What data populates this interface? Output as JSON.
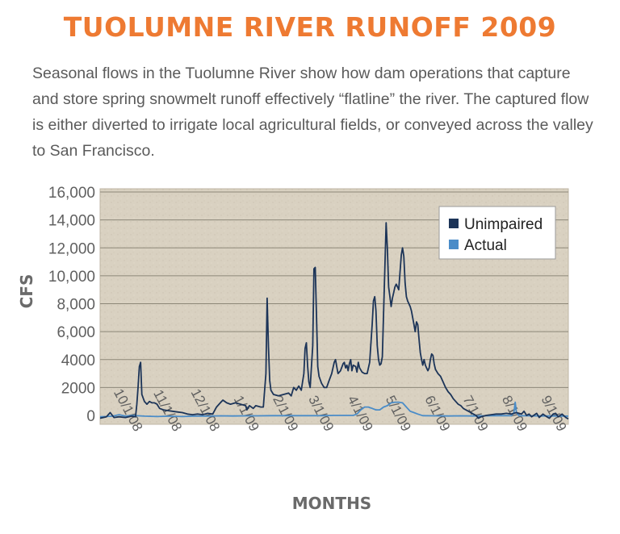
{
  "title": "TUOLUMNE RIVER RUNOFF 2009",
  "description": "Seasonal flows in the Tuolumne River show how dam operations that capture and store spring snowmelt runoff effectively “flatline” the river. The captured flow is either diverted to irrigate local agricultural fields, or conveyed across the valley to San Francisco.",
  "colors": {
    "title": "#ee7a32",
    "unimpaired": "#1c3458",
    "actual": "#4a8cc8",
    "plot_bg": "#d9d1c1",
    "grid": "#8d8778"
  },
  "chart_data": {
    "type": "line",
    "xlabel": "MONTHS",
    "ylabel": "CFS",
    "ylim": [
      0,
      16000
    ],
    "y_ticks": [
      "0",
      "2000",
      "4000",
      "6,000",
      "8,000",
      "10,000",
      "12,000",
      "14,000",
      "16,000"
    ],
    "x_ticks": [
      "10/1/08",
      "11/1/08",
      "12/1/08",
      "1/1/09",
      "2/1/09",
      "3/1/09",
      "4/1/09",
      "5/1/09",
      "6/1/09",
      "7/1/09",
      "8/1/09",
      "9/1/09"
    ],
    "xlim_day": [
      -25,
      345
    ],
    "grid": true,
    "legend_position": "top-right",
    "series": [
      {
        "name": "Unimpaired",
        "points": [
          [
            -25,
            -200
          ],
          [
            -20,
            -100
          ],
          [
            -17,
            200
          ],
          [
            -14,
            -150
          ],
          [
            -10,
            -100
          ],
          [
            -5,
            -150
          ],
          [
            0,
            -50
          ],
          [
            3,
            -100
          ],
          [
            4,
            800
          ],
          [
            5,
            2000
          ],
          [
            6,
            3500
          ],
          [
            7,
            3800
          ],
          [
            8,
            1500
          ],
          [
            10,
            1000
          ],
          [
            12,
            800
          ],
          [
            14,
            1000
          ],
          [
            16,
            900
          ],
          [
            18,
            900
          ],
          [
            20,
            800
          ],
          [
            22,
            500
          ],
          [
            25,
            400
          ],
          [
            28,
            350
          ],
          [
            32,
            300
          ],
          [
            36,
            250
          ],
          [
            40,
            200
          ],
          [
            44,
            100
          ],
          [
            48,
            50
          ],
          [
            52,
            100
          ],
          [
            56,
            50
          ],
          [
            60,
            150
          ],
          [
            64,
            100
          ],
          [
            67,
            600
          ],
          [
            70,
            900
          ],
          [
            72,
            1100
          ],
          [
            75,
            900
          ],
          [
            78,
            800
          ],
          [
            82,
            900
          ],
          [
            86,
            800
          ],
          [
            90,
            700
          ],
          [
            91,
            400
          ],
          [
            93,
            700
          ],
          [
            96,
            500
          ],
          [
            98,
            700
          ],
          [
            102,
            600
          ],
          [
            104,
            600
          ],
          [
            106,
            3000
          ],
          [
            107,
            8400
          ],
          [
            108,
            5000
          ],
          [
            109,
            2500
          ],
          [
            110,
            1800
          ],
          [
            112,
            1500
          ],
          [
            116,
            1400
          ],
          [
            120,
            1500
          ],
          [
            124,
            1600
          ],
          [
            126,
            1400
          ],
          [
            128,
            2000
          ],
          [
            130,
            1800
          ],
          [
            132,
            2100
          ],
          [
            134,
            1800
          ],
          [
            136,
            3000
          ],
          [
            137,
            4800
          ],
          [
            138,
            5200
          ],
          [
            139,
            3500
          ],
          [
            140,
            2400
          ],
          [
            141,
            2000
          ],
          [
            143,
            5000
          ],
          [
            144,
            10500
          ],
          [
            145,
            10600
          ],
          [
            146,
            7000
          ],
          [
            147,
            3500
          ],
          [
            148,
            2800
          ],
          [
            150,
            2300
          ],
          [
            152,
            2000
          ],
          [
            154,
            2000
          ],
          [
            156,
            2500
          ],
          [
            158,
            3000
          ],
          [
            160,
            3800
          ],
          [
            161,
            4000
          ],
          [
            162,
            3500
          ],
          [
            163,
            3000
          ],
          [
            165,
            3200
          ],
          [
            167,
            3700
          ],
          [
            168,
            3800
          ],
          [
            169,
            3400
          ],
          [
            170,
            3600
          ],
          [
            171,
            3200
          ],
          [
            172,
            3700
          ],
          [
            173,
            4000
          ],
          [
            174,
            3200
          ],
          [
            175,
            3600
          ],
          [
            177,
            3500
          ],
          [
            178,
            3100
          ],
          [
            179,
            3800
          ],
          [
            180,
            3400
          ],
          [
            182,
            3100
          ],
          [
            184,
            3000
          ],
          [
            186,
            3000
          ],
          [
            188,
            3800
          ],
          [
            190,
            6500
          ],
          [
            191,
            8200
          ],
          [
            192,
            8500
          ],
          [
            193,
            7500
          ],
          [
            194,
            5000
          ],
          [
            195,
            4000
          ],
          [
            196,
            3600
          ],
          [
            197,
            3700
          ],
          [
            198,
            4200
          ],
          [
            200,
            10500
          ],
          [
            201,
            13800
          ],
          [
            202,
            12000
          ],
          [
            203,
            9200
          ],
          [
            204,
            8500
          ],
          [
            205,
            7800
          ],
          [
            206,
            8400
          ],
          [
            207,
            8800
          ],
          [
            208,
            9200
          ],
          [
            209,
            9400
          ],
          [
            210,
            9200
          ],
          [
            211,
            9000
          ],
          [
            213,
            11500
          ],
          [
            214,
            12000
          ],
          [
            215,
            11400
          ],
          [
            216,
            9500
          ],
          [
            217,
            8500
          ],
          [
            218,
            8200
          ],
          [
            219,
            8000
          ],
          [
            220,
            7800
          ],
          [
            221,
            7500
          ],
          [
            222,
            7000
          ],
          [
            223,
            6500
          ],
          [
            224,
            6000
          ],
          [
            225,
            6700
          ],
          [
            226,
            6500
          ],
          [
            227,
            5500
          ],
          [
            228,
            4500
          ],
          [
            229,
            4000
          ],
          [
            230,
            3600
          ],
          [
            231,
            4000
          ],
          [
            232,
            3600
          ],
          [
            233,
            3400
          ],
          [
            234,
            3200
          ],
          [
            235,
            3400
          ],
          [
            236,
            4000
          ],
          [
            237,
            4400
          ],
          [
            238,
            4300
          ],
          [
            239,
            3700
          ],
          [
            240,
            3300
          ],
          [
            242,
            3000
          ],
          [
            244,
            2800
          ],
          [
            246,
            2400
          ],
          [
            248,
            2000
          ],
          [
            250,
            1700
          ],
          [
            252,
            1500
          ],
          [
            254,
            1200
          ],
          [
            256,
            1000
          ],
          [
            258,
            800
          ],
          [
            260,
            700
          ],
          [
            262,
            500
          ],
          [
            264,
            400
          ],
          [
            266,
            300
          ],
          [
            268,
            200
          ],
          [
            270,
            100
          ],
          [
            272,
            0
          ],
          [
            274,
            -200
          ],
          [
            276,
            -100
          ],
          [
            280,
            0
          ],
          [
            284,
            50
          ],
          [
            288,
            100
          ],
          [
            292,
            100
          ],
          [
            296,
            150
          ],
          [
            300,
            100
          ],
          [
            304,
            200
          ],
          [
            308,
            100
          ],
          [
            310,
            300
          ],
          [
            312,
            0
          ],
          [
            314,
            100
          ],
          [
            316,
            -100
          ],
          [
            320,
            150
          ],
          [
            322,
            -150
          ],
          [
            325,
            100
          ],
          [
            328,
            -100
          ],
          [
            330,
            -200
          ],
          [
            333,
            100
          ],
          [
            335,
            150
          ],
          [
            337,
            -100
          ],
          [
            340,
            100
          ],
          [
            343,
            -150
          ],
          [
            345,
            -250
          ]
        ]
      },
      {
        "name": "Actual",
        "points": [
          [
            -25,
            -100
          ],
          [
            -20,
            -80
          ],
          [
            -15,
            -50
          ],
          [
            -10,
            50
          ],
          [
            -5,
            -50
          ],
          [
            0,
            0
          ],
          [
            10,
            -50
          ],
          [
            20,
            -80
          ],
          [
            30,
            -50
          ],
          [
            40,
            -80
          ],
          [
            50,
            -50
          ],
          [
            60,
            -50
          ],
          [
            70,
            -30
          ],
          [
            80,
            -40
          ],
          [
            90,
            -30
          ],
          [
            100,
            -30
          ],
          [
            110,
            -20
          ],
          [
            120,
            -20
          ],
          [
            130,
            -20
          ],
          [
            140,
            -20
          ],
          [
            150,
            -20
          ],
          [
            160,
            0
          ],
          [
            170,
            0
          ],
          [
            175,
            0
          ],
          [
            178,
            100
          ],
          [
            181,
            400
          ],
          [
            184,
            600
          ],
          [
            187,
            600
          ],
          [
            190,
            500
          ],
          [
            193,
            400
          ],
          [
            196,
            400
          ],
          [
            199,
            600
          ],
          [
            202,
            700
          ],
          [
            205,
            900
          ],
          [
            208,
            950
          ],
          [
            211,
            950
          ],
          [
            214,
            900
          ],
          [
            216,
            700
          ],
          [
            218,
            500
          ],
          [
            220,
            300
          ],
          [
            223,
            200
          ],
          [
            226,
            100
          ],
          [
            230,
            -20
          ],
          [
            240,
            -30
          ],
          [
            250,
            -40
          ],
          [
            260,
            -30
          ],
          [
            270,
            -40
          ],
          [
            280,
            -30
          ],
          [
            290,
            -20
          ],
          [
            300,
            -20
          ],
          [
            302,
            200
          ],
          [
            303,
            950
          ],
          [
            304,
            200
          ],
          [
            306,
            -20
          ],
          [
            315,
            -30
          ],
          [
            325,
            -40
          ],
          [
            335,
            -40
          ],
          [
            345,
            -50
          ]
        ]
      }
    ]
  }
}
